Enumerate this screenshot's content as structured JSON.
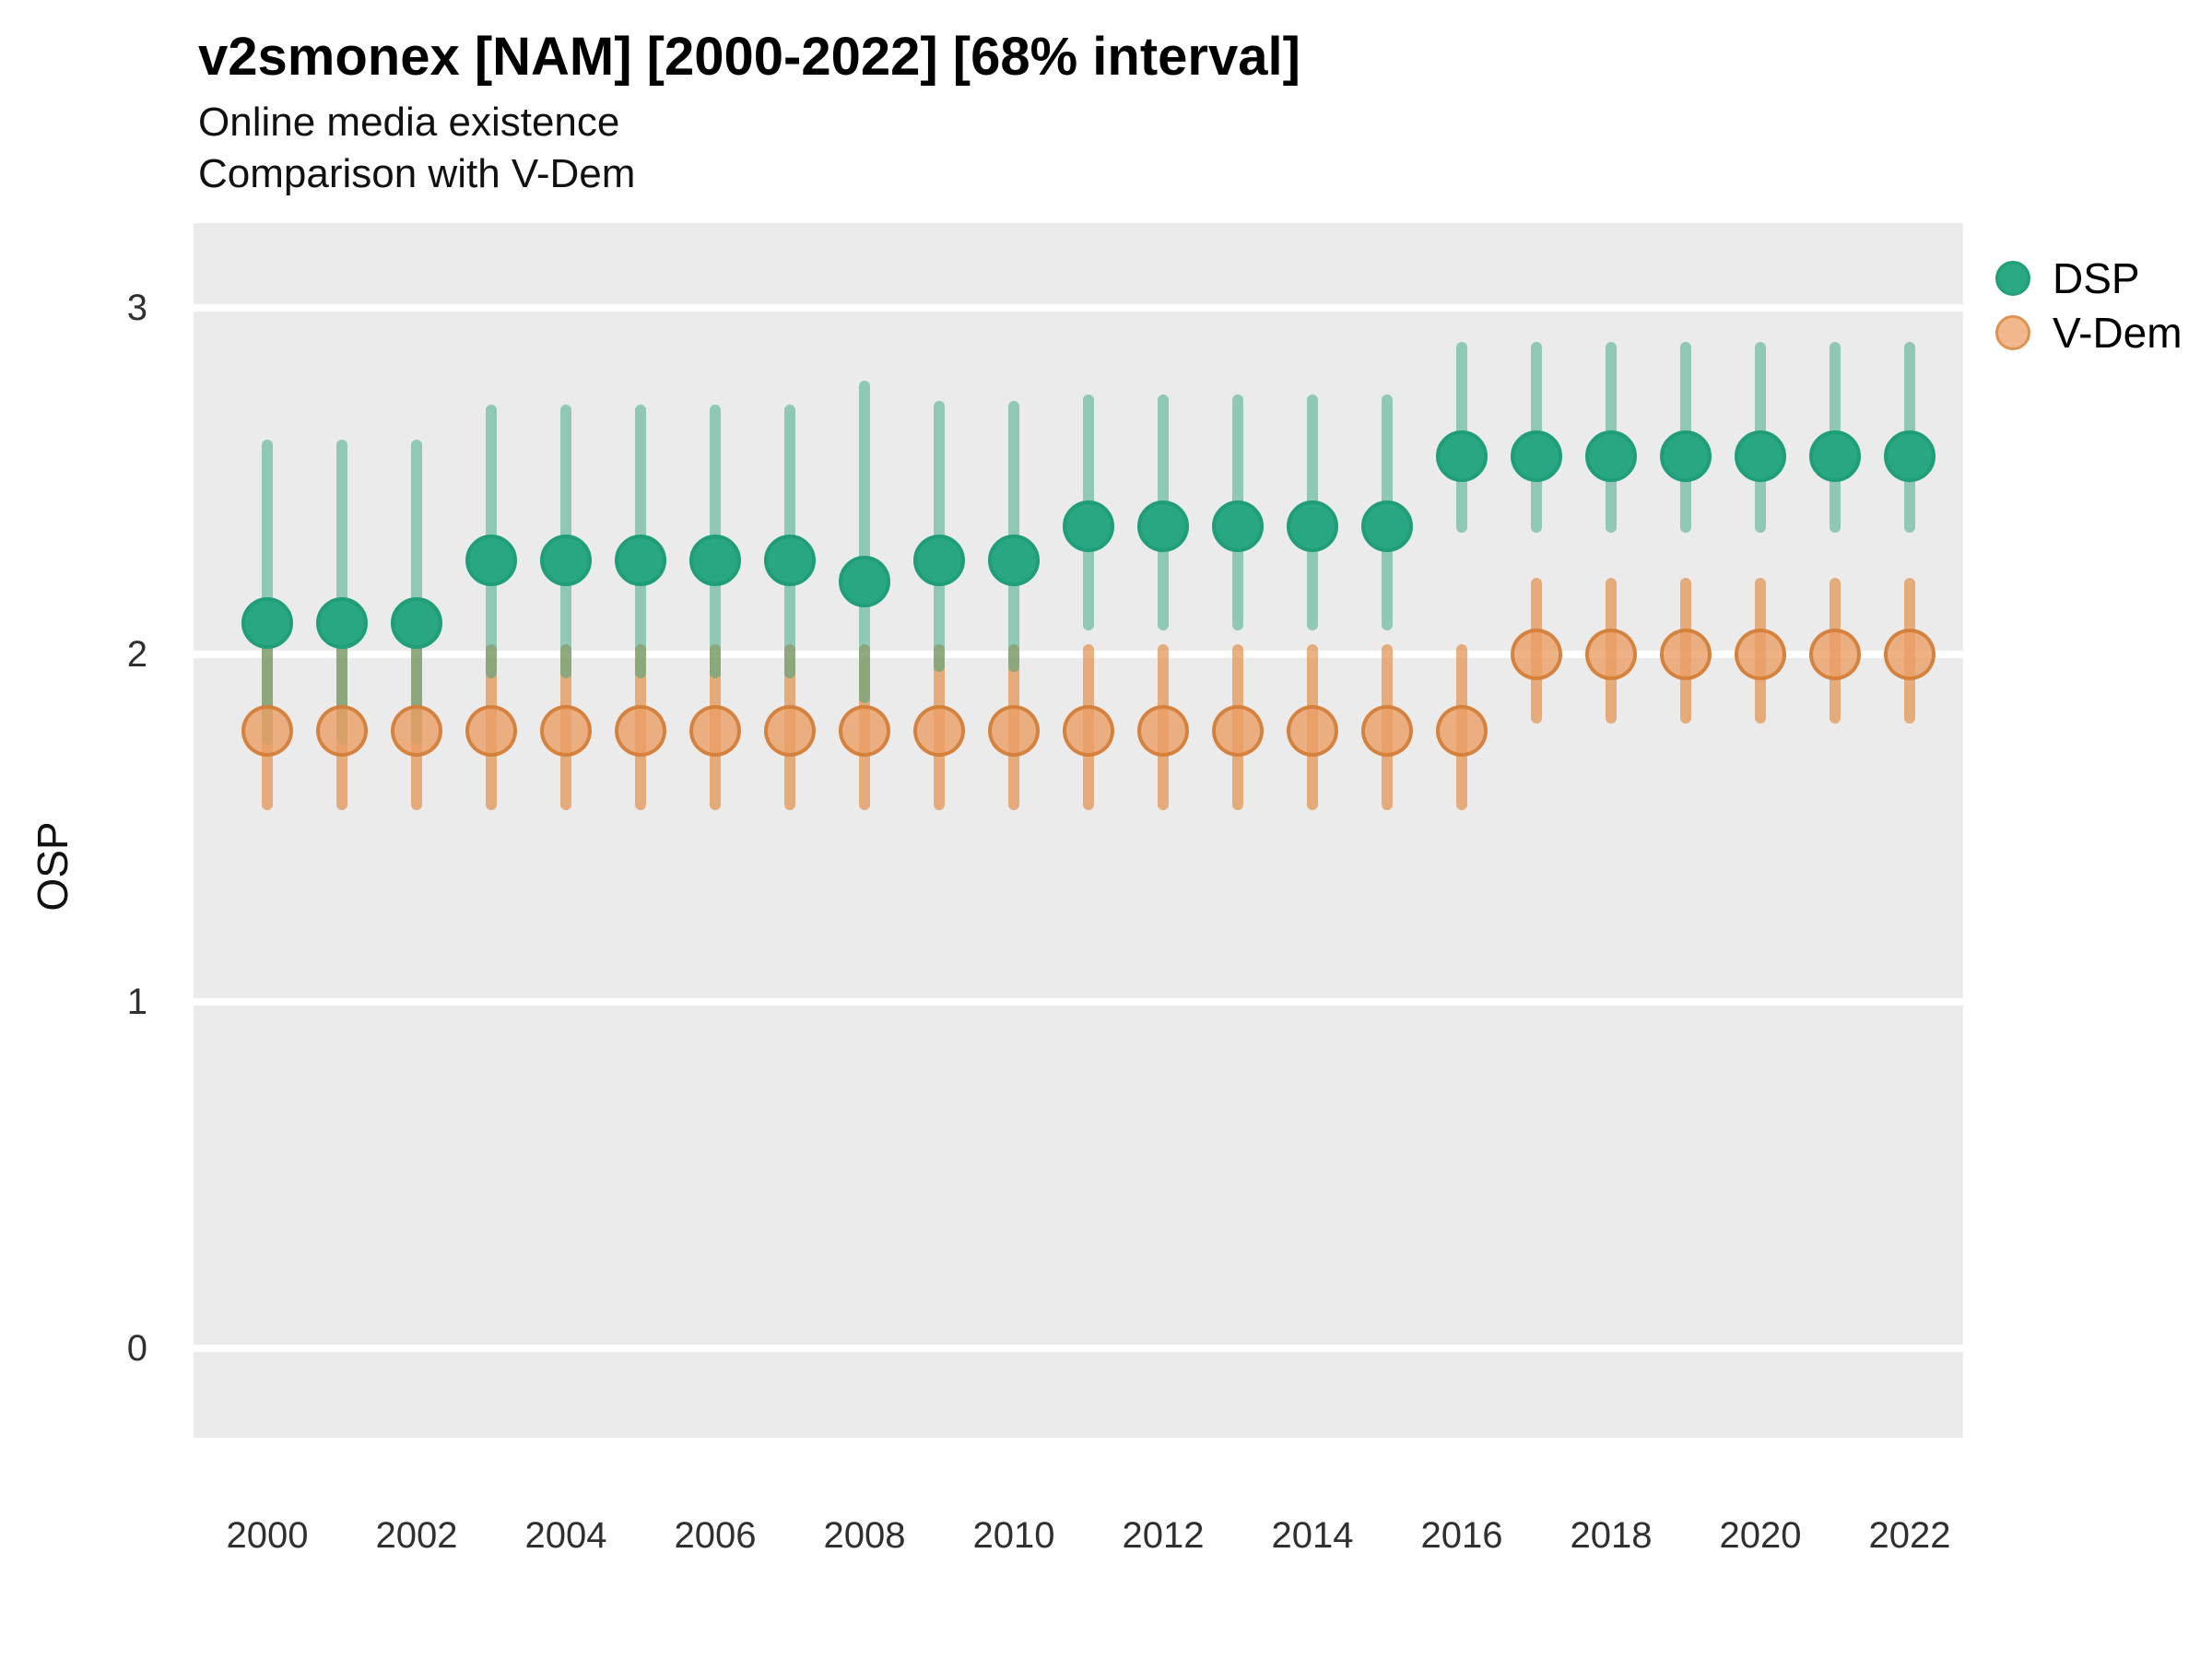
{
  "chart_data": {
    "type": "scatter",
    "variant": "pointrange-interval",
    "title": "v2smonex [NAM] [2000-2022] [68% interval]",
    "subtitle_line1": "Online media existence",
    "subtitle_line2": "Comparison with V-Dem",
    "xlabel": "",
    "ylabel": "OSP",
    "ylim": [
      -0.32,
      3.25
    ],
    "yticks": [
      0,
      1,
      2,
      3
    ],
    "xticks": [
      2000,
      2002,
      2004,
      2006,
      2008,
      2010,
      2012,
      2014,
      2016,
      2018,
      2020,
      2022
    ],
    "x": [
      2000,
      2001,
      2002,
      2003,
      2004,
      2005,
      2006,
      2007,
      2008,
      2009,
      2010,
      2011,
      2012,
      2013,
      2014,
      2015,
      2016,
      2017,
      2018,
      2019,
      2020,
      2021,
      2022
    ],
    "grid": "major-horizontal-white",
    "panel_bg": "#ebebeb",
    "legend_position": "right",
    "series": [
      {
        "name": "DSP",
        "marker_color": "#29a682",
        "marker_border": "#1f9e79",
        "bar_color": "rgba(42,163,123,0.48)",
        "legend_fill": "#2aa881",
        "legend_border": "#21a078",
        "points": [
          2.09,
          2.09,
          2.09,
          2.27,
          2.27,
          2.27,
          2.27,
          2.27,
          2.21,
          2.27,
          2.27,
          2.37,
          2.37,
          2.37,
          2.37,
          2.37,
          2.57,
          2.57,
          2.57,
          2.57,
          2.57,
          2.57,
          2.57
        ],
        "lower": [
          1.74,
          1.74,
          1.74,
          1.93,
          1.93,
          1.93,
          1.93,
          1.93,
          1.86,
          1.95,
          1.95,
          2.07,
          2.07,
          2.07,
          2.07,
          2.07,
          2.35,
          2.35,
          2.35,
          2.35,
          2.35,
          2.35,
          2.35
        ],
        "upper": [
          2.62,
          2.62,
          2.62,
          2.72,
          2.72,
          2.72,
          2.72,
          2.72,
          2.79,
          2.73,
          2.73,
          2.75,
          2.75,
          2.75,
          2.75,
          2.75,
          2.9,
          2.9,
          2.9,
          2.9,
          2.9,
          2.9,
          2.9
        ]
      },
      {
        "name": "V-Dem",
        "marker_color": "rgba(235,159,101,0.8)",
        "marker_border": "rgba(210,125,55,0.9)",
        "bar_color": "rgba(226,140,70,0.68)",
        "legend_fill": "#f0b88c",
        "legend_border": "#dd9252",
        "points": [
          1.78,
          1.78,
          1.78,
          1.78,
          1.78,
          1.78,
          1.78,
          1.78,
          1.78,
          1.78,
          1.78,
          1.78,
          1.78,
          1.78,
          1.78,
          1.78,
          1.78,
          2.0,
          2.0,
          2.0,
          2.0,
          2.0,
          2.0
        ],
        "lower": [
          1.55,
          1.55,
          1.55,
          1.55,
          1.55,
          1.55,
          1.55,
          1.55,
          1.55,
          1.55,
          1.55,
          1.55,
          1.55,
          1.55,
          1.55,
          1.55,
          1.55,
          1.8,
          1.8,
          1.8,
          1.8,
          1.8,
          1.8
        ],
        "upper": [
          2.03,
          2.03,
          2.03,
          2.03,
          2.03,
          2.03,
          2.03,
          2.03,
          2.03,
          2.03,
          2.03,
          2.03,
          2.03,
          2.03,
          2.03,
          2.03,
          2.03,
          2.22,
          2.22,
          2.22,
          2.22,
          2.22,
          2.22
        ]
      }
    ]
  }
}
